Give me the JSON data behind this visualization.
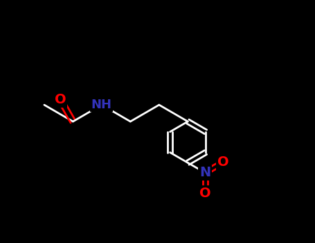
{
  "background_color": "#000000",
  "line_color": "#ffffff",
  "atom_colors": {
    "O": "#ff0000",
    "N": "#3333bb",
    "C": "#ffffff"
  },
  "bond_lw": 2.0,
  "figsize": [
    4.55,
    3.5
  ],
  "dpi": 100,
  "xlim": [
    0.0,
    9.5
  ],
  "ylim": [
    1.5,
    6.5
  ]
}
